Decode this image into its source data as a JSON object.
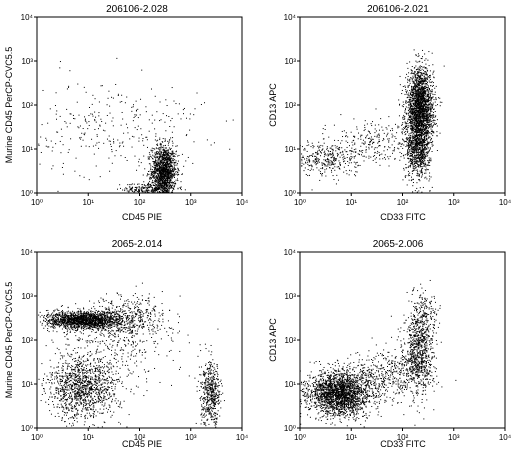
{
  "chart_data": [
    {
      "type": "scatter",
      "title": "206106-2.028",
      "xlabel": "CD45 PIE",
      "ylabel": "Murine CD45 PerCP-CVC5.5",
      "xscale": "log",
      "yscale": "log",
      "xlim": [
        1,
        10000
      ],
      "ylim": [
        1,
        10000
      ],
      "x_ticks": [
        "10⁰",
        "10¹",
        "10²",
        "10³",
        "10⁴"
      ],
      "y_ticks": [
        "10⁰",
        "10¹",
        "10²",
        "10³",
        "10⁴"
      ],
      "clusters": [
        {
          "center": [
            300,
            3
          ],
          "spread_log": [
            0.12,
            0.3
          ],
          "count": 1400
        },
        {
          "center": [
            150,
            1.2
          ],
          "spread_log": [
            0.25,
            0.08
          ],
          "count": 250
        },
        {
          "center": [
            30,
            30
          ],
          "spread_log": [
            0.9,
            0.55
          ],
          "count": 320
        }
      ]
    },
    {
      "type": "scatter",
      "title": "206106-2.021",
      "xlabel": "CD33 FITC",
      "ylabel": "CD13 APC",
      "xscale": "log",
      "yscale": "log",
      "xlim": [
        1,
        10000
      ],
      "ylim": [
        1,
        10000
      ],
      "x_ticks": [
        "10⁰",
        "10¹",
        "10²",
        "10³",
        "10⁴"
      ],
      "y_ticks": [
        "10⁰",
        "10¹",
        "10²",
        "10³",
        "10⁴"
      ],
      "clusters": [
        {
          "center": [
            220,
            80
          ],
          "spread_log": [
            0.13,
            0.45
          ],
          "count": 2200
        },
        {
          "center": [
            200,
            10
          ],
          "spread_log": [
            0.12,
            0.35
          ],
          "count": 700
        },
        {
          "center": [
            3,
            6
          ],
          "spread_log": [
            0.35,
            0.2
          ],
          "count": 350
        },
        {
          "center": [
            25,
            15
          ],
          "spread_log": [
            0.45,
            0.25
          ],
          "count": 250
        }
      ]
    },
    {
      "type": "scatter",
      "title": "2065-2.014",
      "xlabel": "CD45 PIE",
      "ylabel": "Murine CD45 PerCP-CVC5.5",
      "xscale": "log",
      "yscale": "log",
      "xlim": [
        1,
        10000
      ],
      "ylim": [
        1,
        10000
      ],
      "x_ticks": [
        "10⁰",
        "10¹",
        "10²",
        "10³",
        "10⁴"
      ],
      "y_ticks": [
        "10⁰",
        "10¹",
        "10²",
        "10³",
        "10⁴"
      ],
      "clusters": [
        {
          "center": [
            8,
            280
          ],
          "spread_log": [
            0.35,
            0.1
          ],
          "count": 1600
        },
        {
          "center": [
            8,
            8
          ],
          "spread_log": [
            0.35,
            0.35
          ],
          "count": 1200
        },
        {
          "center": [
            2500,
            6
          ],
          "spread_log": [
            0.1,
            0.35
          ],
          "count": 500
        },
        {
          "center": [
            60,
            300
          ],
          "spread_log": [
            0.35,
            0.25
          ],
          "count": 450
        },
        {
          "center": [
            30,
            80
          ],
          "spread_log": [
            0.7,
            0.5
          ],
          "count": 350
        }
      ]
    },
    {
      "type": "scatter",
      "title": "2065-2.006",
      "xlabel": "CD33 FITC",
      "ylabel": "CD13 APC",
      "xscale": "log",
      "yscale": "log",
      "xlim": [
        1,
        10000
      ],
      "ylim": [
        1,
        10000
      ],
      "x_ticks": [
        "10⁰",
        "10¹",
        "10²",
        "10³",
        "10⁴"
      ],
      "y_ticks": [
        "10⁰",
        "10¹",
        "10²",
        "10³",
        "10⁴"
      ],
      "clusters": [
        {
          "center": [
            6,
            6
          ],
          "spread_log": [
            0.3,
            0.25
          ],
          "count": 2200
        },
        {
          "center": [
            200,
            40
          ],
          "spread_log": [
            0.15,
            0.45
          ],
          "count": 700
        },
        {
          "center": [
            50,
            15
          ],
          "spread_log": [
            0.4,
            0.3
          ],
          "count": 450
        },
        {
          "center": [
            250,
            300
          ],
          "spread_log": [
            0.15,
            0.35
          ],
          "count": 250
        }
      ]
    }
  ]
}
